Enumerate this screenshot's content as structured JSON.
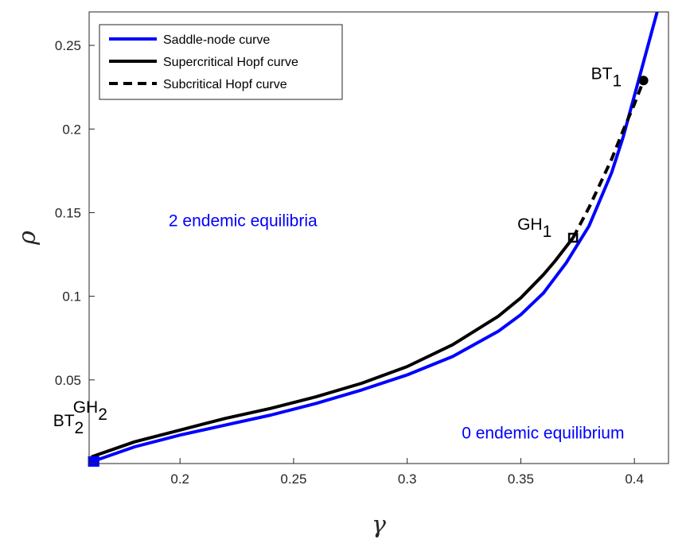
{
  "chart_data": {
    "type": "line",
    "title": "",
    "xlabel": "γ",
    "ylabel": "ρ",
    "xlim": [
      0.16,
      0.415
    ],
    "ylim": [
      0.0,
      0.27
    ],
    "xticks": [
      "0.2",
      "0.25",
      "0.3",
      "0.35",
      "0.4"
    ],
    "yticks": [
      "0.05",
      "0.1",
      "0.15",
      "0.2",
      "0.25"
    ],
    "grid": false,
    "legend_position": "top-left",
    "colors": {
      "saddle": "#0000ff",
      "hopf": "#000000",
      "region_text": "#0000ff"
    },
    "series": [
      {
        "name": "Saddle-node curve",
        "color": "#0000ff",
        "style": "solid",
        "x": [
          0.161,
          0.18,
          0.2,
          0.22,
          0.24,
          0.26,
          0.28,
          0.3,
          0.32,
          0.34,
          0.35,
          0.36,
          0.37,
          0.38,
          0.39,
          0.395,
          0.4,
          0.404,
          0.408,
          0.411
        ],
        "y": [
          0.001,
          0.01,
          0.017,
          0.023,
          0.029,
          0.036,
          0.044,
          0.053,
          0.064,
          0.079,
          0.089,
          0.102,
          0.12,
          0.142,
          0.174,
          0.195,
          0.22,
          0.24,
          0.26,
          0.275
        ]
      },
      {
        "name": "Supercritical Hopf curve",
        "color": "#000000",
        "style": "solid",
        "x": [
          0.161,
          0.18,
          0.2,
          0.22,
          0.24,
          0.26,
          0.28,
          0.3,
          0.32,
          0.34,
          0.35,
          0.36,
          0.365,
          0.373
        ],
        "y": [
          0.004,
          0.013,
          0.02,
          0.027,
          0.033,
          0.04,
          0.048,
          0.058,
          0.071,
          0.088,
          0.099,
          0.113,
          0.121,
          0.135
        ]
      },
      {
        "name": "Subcritical Hopf curve",
        "color": "#000000",
        "style": "dashed",
        "x": [
          0.373,
          0.38,
          0.39,
          0.395,
          0.4,
          0.404
        ],
        "y": [
          0.135,
          0.153,
          0.182,
          0.199,
          0.215,
          0.229
        ]
      }
    ],
    "points": [
      {
        "name": "BT",
        "sub": "1",
        "x": 0.404,
        "y": 0.229,
        "marker": "circle",
        "color": "#000000"
      },
      {
        "name": "GH",
        "sub": "1",
        "x": 0.373,
        "y": 0.135,
        "marker": "open-square",
        "color": "#000000"
      },
      {
        "name": "BT",
        "sub": "2",
        "x": 0.162,
        "y": 0.001,
        "marker": "square",
        "color": "#0000ff"
      },
      {
        "name": "GH",
        "sub": "2",
        "x": 0.162,
        "y": 0.001,
        "marker": "square",
        "color": "#0000ff"
      }
    ],
    "annotations": [
      {
        "id": "two",
        "text": "2 endemic  equilibria",
        "x": 0.195,
        "y": 0.142,
        "color": "#0000ff"
      },
      {
        "id": "zero",
        "text": "0 endemic equilibrium",
        "x": 0.324,
        "y": 0.015,
        "color": "#0000ff"
      }
    ]
  }
}
